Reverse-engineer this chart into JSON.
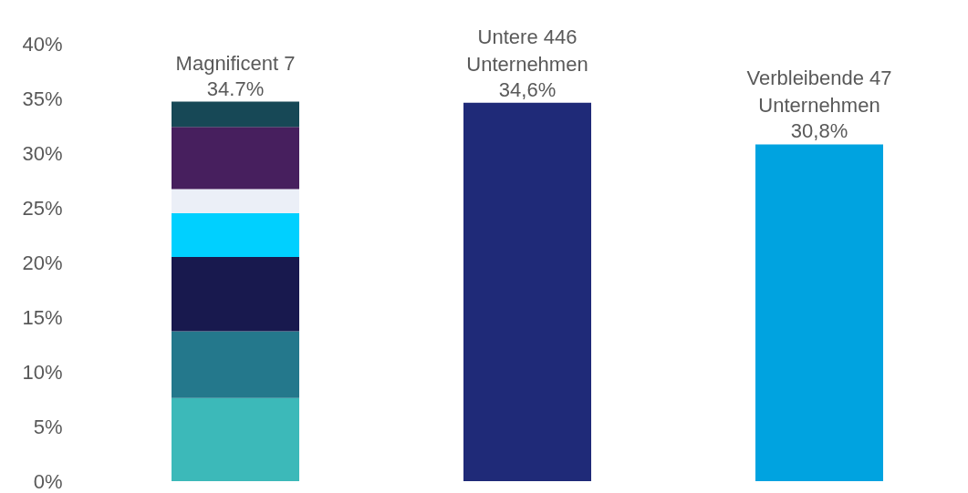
{
  "chart_data": {
    "type": "bar",
    "stacked": true,
    "categories": [
      "Magnificent 7",
      "Untere 446\nUnternehmen",
      "Verbleibende 47\nUnternehmen"
    ],
    "series": [
      {
        "colors": [
          "#3cb9b9",
          "#1f2a78",
          "#00a3e0"
        ],
        "values": [
          7.6,
          34.6,
          30.8
        ]
      },
      {
        "color": "#24788c",
        "values": [
          6.1,
          null,
          null
        ]
      },
      {
        "color": "#18194e",
        "values": [
          6.8,
          null,
          null
        ]
      },
      {
        "color": "#00d0ff",
        "values": [
          4.0,
          null,
          null
        ]
      },
      {
        "color": "#ebeff7",
        "values": [
          2.2,
          null,
          null
        ]
      },
      {
        "color": "#471f5e",
        "values": [
          5.7,
          null,
          null
        ]
      },
      {
        "color": "#174856",
        "values": [
          2.3,
          null,
          null
        ]
      }
    ],
    "totals": [
      "34.7%",
      "34,6%",
      "30,8%"
    ],
    "ylim": [
      0,
      40
    ],
    "yticks": [
      {
        "value": 0,
        "label": "0%"
      },
      {
        "value": 5,
        "label": "5%"
      },
      {
        "value": 10,
        "label": "10%"
      },
      {
        "value": 15,
        "label": "15%"
      },
      {
        "value": 20,
        "label": "20%"
      },
      {
        "value": 25,
        "label": "25%"
      },
      {
        "value": 30,
        "label": "30%"
      },
      {
        "value": 35,
        "label": "35%"
      },
      {
        "value": 40,
        "label": "40%"
      }
    ]
  }
}
